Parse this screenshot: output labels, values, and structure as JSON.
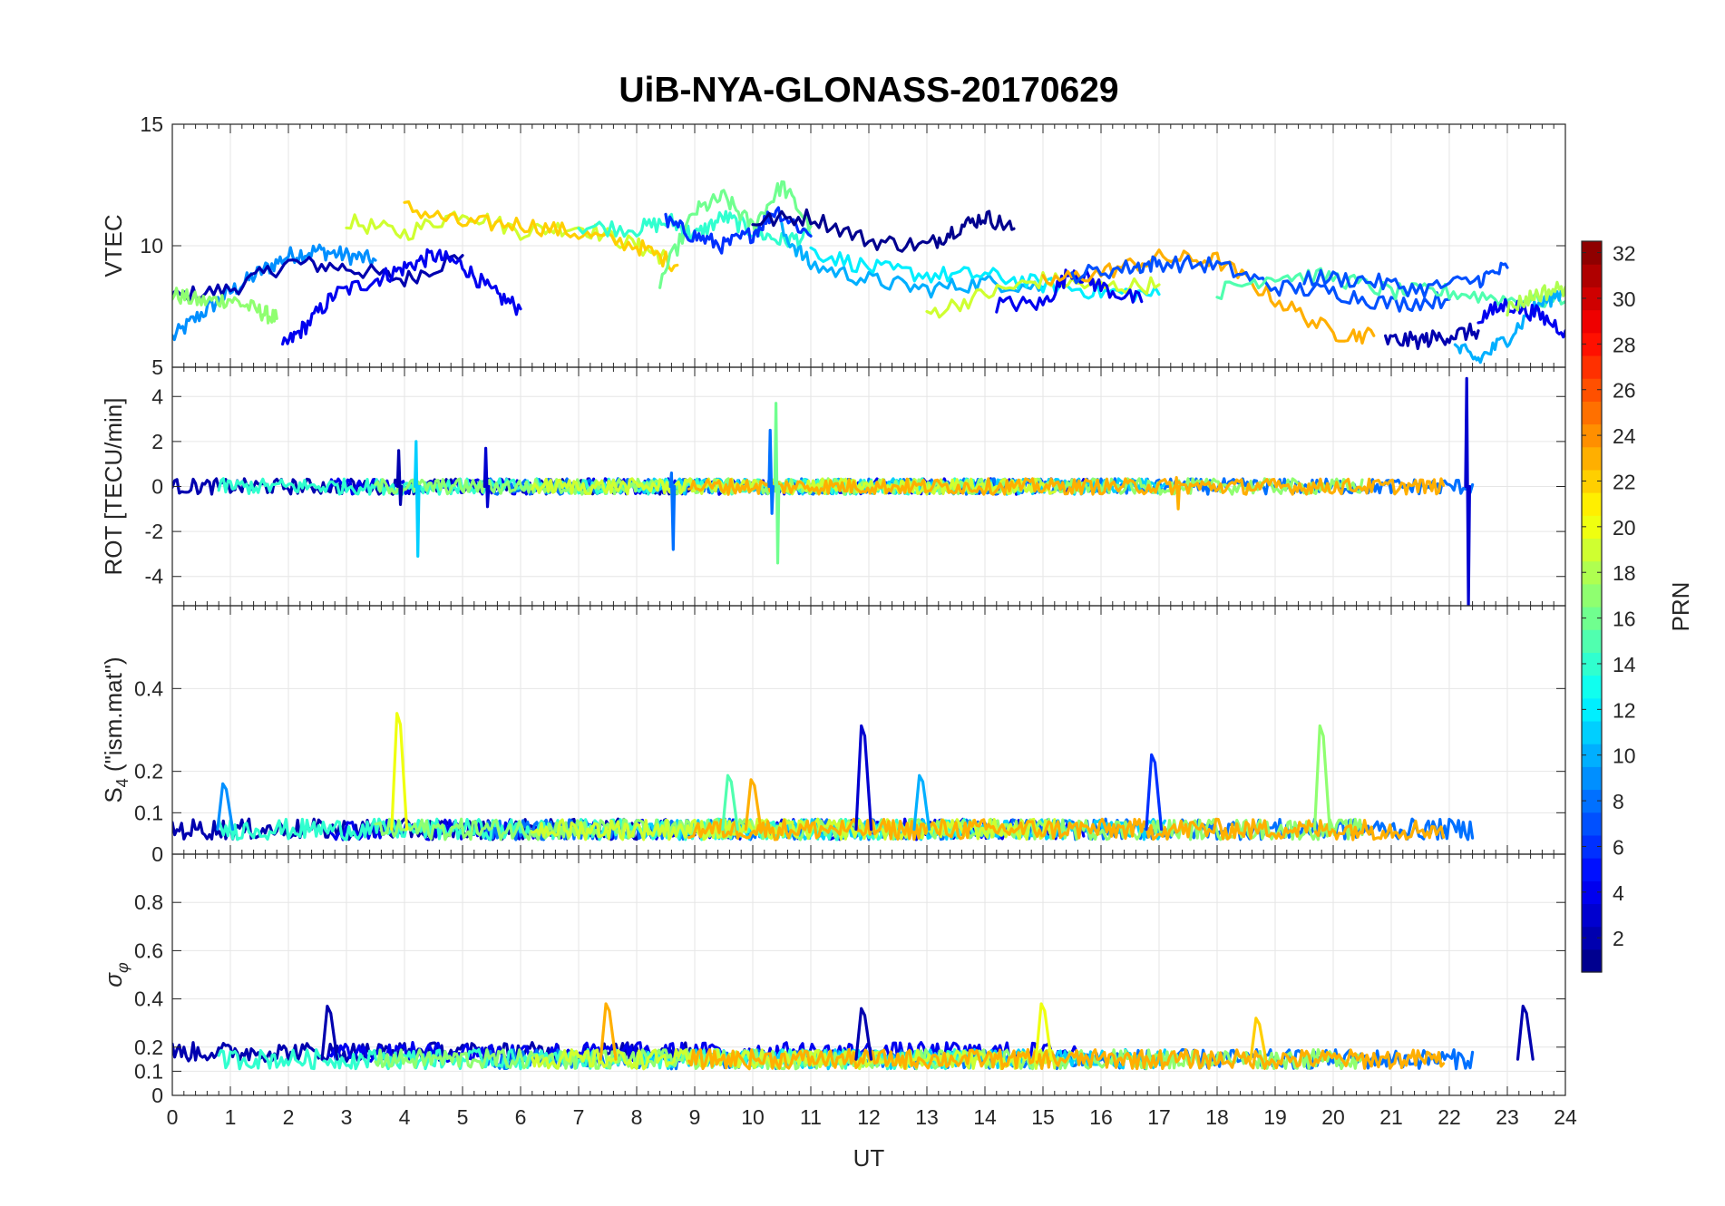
{
  "chart_data": {
    "type": "line",
    "title": "UiB-NYA-GLONASS-20170629",
    "xlabel": "UT",
    "xlim": [
      0,
      24
    ],
    "xticks": [
      0,
      1,
      2,
      3,
      4,
      5,
      6,
      7,
      8,
      9,
      10,
      11,
      12,
      13,
      14,
      15,
      16,
      17,
      18,
      19,
      20,
      21,
      22,
      23,
      24
    ],
    "colorbar": {
      "label": "PRN",
      "colormap": "jet",
      "range": [
        1,
        32
      ],
      "ticks": [
        2,
        4,
        6,
        8,
        10,
        12,
        14,
        16,
        18,
        20,
        22,
        24,
        26,
        28,
        30,
        32
      ]
    },
    "panels": [
      {
        "id": "vtec",
        "ylabel": "VTEC",
        "ylim": [
          5,
          15
        ],
        "yticks": [
          5,
          10,
          15
        ],
        "series": [
          {
            "prn": 9,
            "x": [
              0,
              0.5,
              1,
              1.5,
              2,
              2.5,
              3,
              3.5
            ],
            "y": [
              6.2,
              7.2,
              8.1,
              8.9,
              9.6,
              9.8,
              9.6,
              9.4
            ]
          },
          {
            "prn": 2,
            "x": [
              0,
              1,
              2,
              3,
              4,
              5
            ],
            "y": [
              7.9,
              8.2,
              9.3,
              9.1,
              8.6,
              9.6
            ]
          },
          {
            "prn": 17,
            "x": [
              0,
              0.5,
              1,
              1.5,
              1.8
            ],
            "y": [
              8.0,
              7.7,
              7.8,
              7.3,
              7.0
            ]
          },
          {
            "prn": 4,
            "x": [
              1.9,
              2.3,
              2.8,
              3.5,
              4.0,
              4.5,
              5.0,
              5.5,
              6.0
            ],
            "y": [
              5.8,
              6.7,
              8.0,
              8.6,
              9.1,
              9.6,
              9.2,
              8.1,
              7.4
            ]
          },
          {
            "prn": 19,
            "x": [
              3.0,
              4.0,
              5.0,
              6.0,
              7.0,
              8.0,
              8.5
            ],
            "y": [
              11.0,
              10.5,
              11.4,
              10.6,
              10.8,
              10.0,
              9.5
            ]
          },
          {
            "prn": 22,
            "x": [
              4.0,
              5.0,
              6.0,
              7.0,
              8.0,
              8.7
            ],
            "y": [
              11.6,
              10.9,
              10.9,
              10.5,
              10.0,
              9.2
            ]
          },
          {
            "prn": 14,
            "x": [
              7.0,
              8.0,
              8.6,
              9.0,
              9.5,
              10.0,
              10.5,
              11.0
            ],
            "y": [
              10.8,
              10.7,
              11.0,
              10.4,
              11.2,
              10.6,
              10.2,
              10.4
            ]
          },
          {
            "prn": 16,
            "x": [
              8.4,
              9.0,
              9.5,
              10.0,
              10.5,
              11.0
            ],
            "y": [
              8.5,
              11.4,
              12.0,
              10.8,
              12.5,
              10.8
            ]
          },
          {
            "prn": 6,
            "x": [
              8.5,
              9.0,
              9.5,
              10.0,
              10.4,
              11.0
            ],
            "y": [
              11.0,
              10.4,
              10.0,
              10.5,
              11.5,
              10.4
            ]
          },
          {
            "prn": 1,
            "x": [
              10.0,
              11.0,
              12.0,
              13.0,
              13.5,
              14.0,
              14.5
            ],
            "y": [
              11.0,
              11.2,
              10.2,
              10.0,
              10.7,
              11.2,
              10.7
            ]
          },
          {
            "prn": 10,
            "x": [
              10.5,
              11.0,
              12.0,
              13.0,
              14.0,
              15.0
            ],
            "y": [
              10.6,
              9.2,
              8.6,
              8.2,
              8.5,
              8.3
            ]
          },
          {
            "prn": 12,
            "x": [
              11.0,
              12.0,
              13.0,
              14.0,
              15.0,
              16.0,
              17.0
            ],
            "y": [
              9.8,
              9.1,
              8.8,
              8.8,
              8.4,
              8.1,
              8.0
            ]
          },
          {
            "prn": 19,
            "x": [
              13.0,
              14.0,
              15.0,
              16.0,
              17.0
            ],
            "y": [
              7.2,
              8.0,
              8.6,
              8.3,
              8.4
            ]
          },
          {
            "prn": 4,
            "x": [
              14.2,
              15.0,
              15.5,
              16.0,
              16.7
            ],
            "y": [
              7.6,
              7.6,
              9.0,
              8.3,
              7.7
            ]
          },
          {
            "prn": 23,
            "x": [
              15.0,
              16.0,
              17.0,
              18.0,
              19.0,
              20.0,
              20.7
            ],
            "y": [
              8.5,
              8.9,
              9.5,
              9.4,
              7.8,
              6.4,
              6.3
            ]
          },
          {
            "prn": 7,
            "x": [
              15.5,
              16.5,
              17.0,
              18.0,
              19.0,
              20.0,
              21.0,
              22.0
            ],
            "y": [
              8.8,
              9.1,
              9.3,
              9.2,
              8.3,
              8.1,
              7.6,
              7.8
            ]
          },
          {
            "prn": 15,
            "x": [
              18.0,
              19.0,
              20.0,
              21.0,
              22.0,
              23.0,
              24.0
            ],
            "y": [
              8.1,
              8.8,
              8.7,
              8.1,
              8.1,
              7.8,
              7.7
            ]
          },
          {
            "prn": 7,
            "x": [
              19.5,
              20.5,
              21.5,
              22.5,
              23.0
            ],
            "y": [
              8.7,
              8.6,
              8.2,
              8.6,
              9.1
            ]
          },
          {
            "prn": 2,
            "x": [
              20.9,
              21.5,
              22.0,
              22.5
            ],
            "y": [
              6.1,
              6.1,
              6.3,
              6.5
            ]
          },
          {
            "prn": 10,
            "x": [
              22.1,
              22.5,
              23.0,
              23.5,
              24.0
            ],
            "y": [
              5.8,
              5.3,
              6.2,
              7.5,
              8.2
            ]
          },
          {
            "prn": 4,
            "x": [
              22.5,
              23.0,
              23.5,
              24.0
            ],
            "y": [
              7.0,
              7.6,
              7.2,
              6.5
            ]
          },
          {
            "prn": 18,
            "x": [
              23.0,
              23.5,
              24.0
            ],
            "y": [
              7.4,
              8.0,
              8.3
            ]
          }
        ]
      },
      {
        "id": "rot",
        "ylabel": "ROT [TECU/min]",
        "ylim": [
          -5.3,
          5.3
        ],
        "yticks": [
          -4,
          -2,
          0,
          2,
          4
        ],
        "spikes": [
          {
            "prn": 11,
            "x": 4.2,
            "min": -3.1,
            "max": 2.0
          },
          {
            "prn": 2,
            "x": 3.9,
            "min": -0.8,
            "max": 1.6
          },
          {
            "prn": 3,
            "x": 5.4,
            "min": -0.9,
            "max": 1.7
          },
          {
            "prn": 8,
            "x": 8.6,
            "min": -2.8,
            "max": 0.6
          },
          {
            "prn": 16,
            "x": 10.4,
            "min": -3.4,
            "max": 3.7
          },
          {
            "prn": 8,
            "x": 10.3,
            "min": -1.2,
            "max": 2.5
          },
          {
            "prn": 23,
            "x": 17.3,
            "min": -1.0,
            "max": 0.4
          },
          {
            "prn": 3,
            "x": 22.3,
            "min": -5.3,
            "max": 4.8
          }
        ]
      },
      {
        "id": "s4",
        "ylabel": "S4 (\"ism.mat\")",
        "ylim": [
          0,
          0.6
        ],
        "yticks": [
          0,
          0.1,
          0.2,
          0.4
        ],
        "ytick_labels": [
          "0",
          "0.1",
          "0.2",
          "0.4"
        ],
        "peaks": [
          {
            "prn": 20,
            "x": 3.9,
            "y": 0.34
          },
          {
            "prn": 3,
            "x": 11.9,
            "y": 0.31
          },
          {
            "prn": 17,
            "x": 19.8,
            "y": 0.31
          },
          {
            "prn": 6,
            "x": 16.9,
            "y": 0.24
          },
          {
            "prn": 10,
            "x": 12.9,
            "y": 0.19
          },
          {
            "prn": 15,
            "x": 9.6,
            "y": 0.19
          },
          {
            "prn": 23,
            "x": 10.0,
            "y": 0.18
          },
          {
            "prn": 9,
            "x": 0.9,
            "y": 0.17
          }
        ]
      },
      {
        "id": "sigma_phi",
        "ylabel": "σφ",
        "ylim": [
          0,
          1
        ],
        "yticks": [
          0,
          0.1,
          0.2,
          0.4,
          0.6,
          0.8
        ],
        "ytick_labels": [
          "0",
          "0.1",
          "0.2",
          "0.4",
          "0.6",
          "0.8"
        ],
        "peaks": [
          {
            "prn": 23,
            "x": 7.5,
            "y": 0.38
          },
          {
            "prn": 20,
            "x": 15.0,
            "y": 0.38
          },
          {
            "prn": 2,
            "x": 2.7,
            "y": 0.37
          },
          {
            "prn": 2,
            "x": 23.3,
            "y": 0.37
          },
          {
            "prn": 2,
            "x": 11.9,
            "y": 0.36
          },
          {
            "prn": 22,
            "x": 18.7,
            "y": 0.32
          }
        ]
      }
    ]
  }
}
